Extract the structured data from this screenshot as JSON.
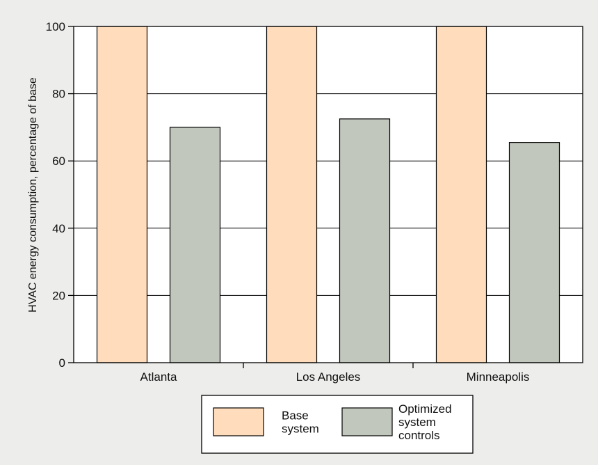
{
  "chart_data": {
    "type": "bar",
    "categories": [
      "Atlanta",
      "Los Angeles",
      "Minneapolis"
    ],
    "series": [
      {
        "name": "Base system",
        "legend_lines": [
          "Base",
          "system"
        ],
        "values": [
          100,
          100,
          100
        ],
        "color": "#ffdcbb"
      },
      {
        "name": "Optimized system controls",
        "legend_lines": [
          "Optimized",
          "system",
          "controls"
        ],
        "values": [
          70,
          72.5,
          65.5
        ],
        "color": "#c1c7bc"
      }
    ],
    "ylabel": "HVAC energy consumption, percentage of base",
    "xlabel": "",
    "ylim": [
      0,
      100
    ],
    "yticks": [
      0,
      20,
      40,
      60,
      80,
      100
    ],
    "grid": true,
    "legend_position": "bottom-center",
    "background": "#ededec",
    "plot_background": "#ffffff"
  }
}
